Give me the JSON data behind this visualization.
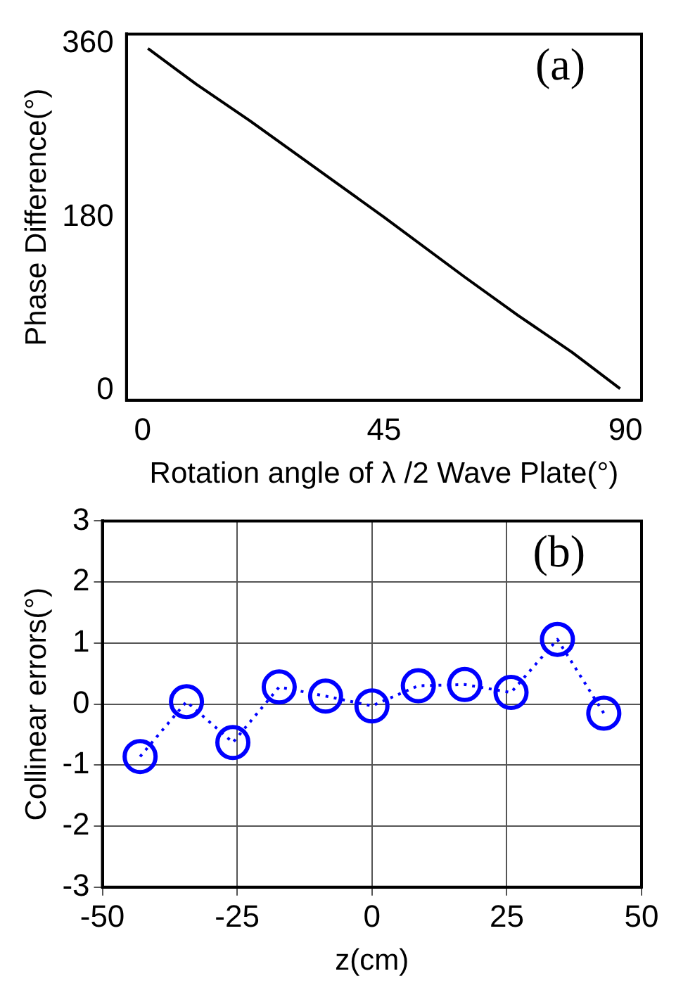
{
  "chart_data": [
    {
      "type": "line",
      "xlabel": "Rotation angle of λ /2 Wave Plate(°)",
      "ylabel": "Phase Difference(°)",
      "annotations": [
        "(a)"
      ],
      "x": [
        1,
        10,
        20,
        30,
        45,
        60,
        70,
        80,
        89
      ],
      "series": [
        {
          "color": "#000000",
          "values": [
            355,
            318,
            280,
            240,
            180,
            118,
            78,
            40,
            2
          ]
        }
      ],
      "xlim": [
        -3,
        93
      ],
      "xticks": [
        0,
        45,
        90
      ],
      "ylim": [
        -10,
        370
      ],
      "yticks": [
        0,
        180,
        360
      ],
      "grid": false,
      "marker": "none",
      "line_style": "solid"
    },
    {
      "type": "line",
      "xlabel": "z(cm)",
      "ylabel": "Collinear errors(°)",
      "annotations": [
        "(b)"
      ],
      "x": [
        -43,
        -34.4,
        -25.8,
        -17.2,
        -8.6,
        0,
        8.6,
        17.2,
        25.8,
        34.4,
        43
      ],
      "series": [
        {
          "color": "#0000ff",
          "values": [
            -0.86,
            0.04,
            -0.63,
            0.28,
            0.13,
            -0.03,
            0.3,
            0.32,
            0.19,
            1.06,
            -0.15
          ]
        }
      ],
      "xlim": [
        -50,
        50
      ],
      "xticks": [
        -50,
        -25,
        0,
        25,
        50
      ],
      "ylim": [
        -3,
        3
      ],
      "yticks": [
        -3,
        -2,
        -1,
        0,
        1,
        2,
        3
      ],
      "grid": true,
      "marker": "circle",
      "line_style": "dotted"
    }
  ]
}
